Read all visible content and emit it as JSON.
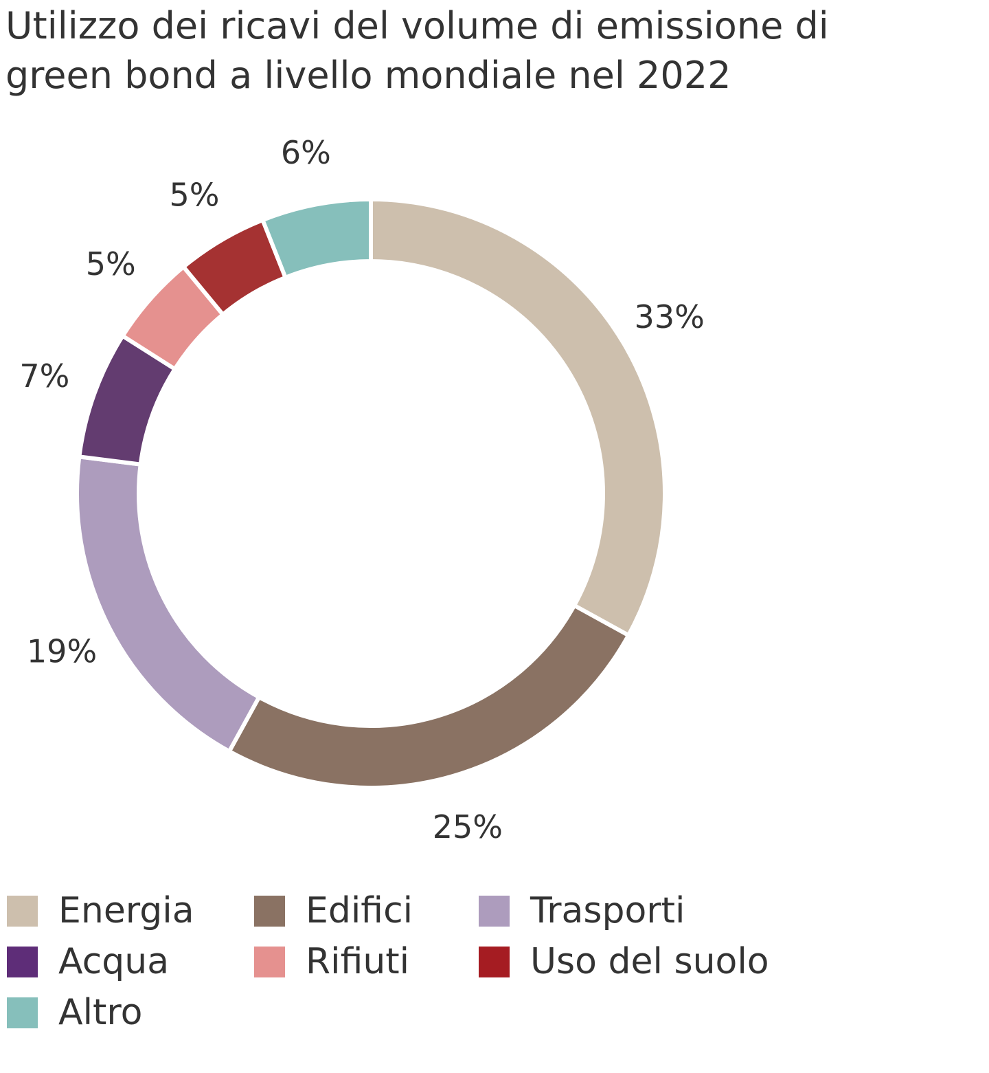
{
  "chart_data": {
    "type": "pie",
    "variant": "donut",
    "title": "Utilizzo dei ricavi del volume di emissione di green bond a livello mondiale nel 2022",
    "unit": "%",
    "slices": [
      {
        "name": "Energia",
        "value": 33,
        "label": "33%",
        "color": "#cdbfad"
      },
      {
        "name": "Edifici",
        "value": 25,
        "label": "25%",
        "color": "#8a7263"
      },
      {
        "name": "Trasporti",
        "value": 19,
        "label": "19%",
        "color": "#ad9cbd"
      },
      {
        "name": "Acqua",
        "value": 7,
        "label": "7%",
        "color": "#633c70"
      },
      {
        "name": "Rifiuti",
        "value": 5,
        "label": "5%",
        "color": "#e5918f"
      },
      {
        "name": "Uso del suolo",
        "value": 5,
        "label": "5%",
        "color": "#a53232"
      },
      {
        "name": "Altro",
        "value": 6,
        "label": "6%",
        "color": "#86bfbb"
      }
    ],
    "legend": [
      {
        "label": "Energia",
        "color": "#cdbfad"
      },
      {
        "label": "Edifici",
        "color": "#8a7263"
      },
      {
        "label": "Trasporti",
        "color": "#ad9cbd"
      },
      {
        "label": "Acqua",
        "color": "#5e2d78"
      },
      {
        "label": "Rifiuti",
        "color": "#e5918f"
      },
      {
        "label": "Uso del suolo",
        "color": "#a51c22"
      },
      {
        "label": "Altro",
        "color": "#86bfbb"
      }
    ],
    "legend_position": "bottom"
  }
}
